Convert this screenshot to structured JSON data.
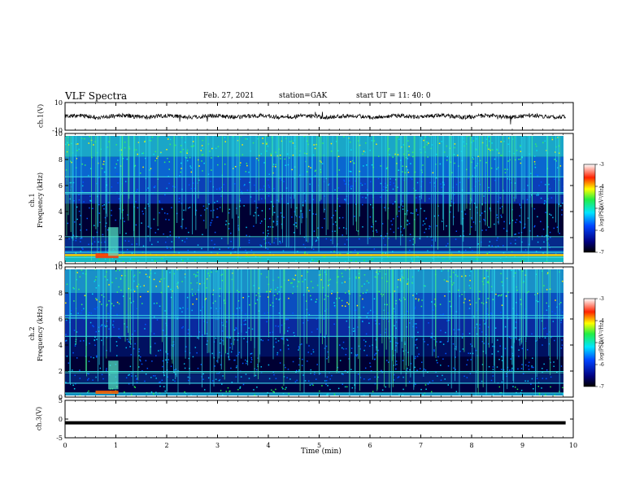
{
  "header": {
    "title": "VLF Spectra",
    "date": "Feb. 27, 2021",
    "station": "station=GAK",
    "start": "start UT =  11: 40: 0"
  },
  "colors": {
    "spectrogram_low": "#000033",
    "spectrogram_mid": "#0044cc",
    "spectrogram_cyan": "#00ddee",
    "spectrogram_green": "#33ee66",
    "spectrogram_yellow": "#ffee00",
    "spectrogram_red": "#dd0000",
    "trace": "#000000"
  },
  "chart_data": [
    {
      "type": "line",
      "panel": "ch1-waveform",
      "ylabel": "ch.1(V)",
      "ylim": [
        -10,
        10
      ],
      "yticks": [
        "10",
        "-10"
      ],
      "description_values": "noise trace centred near 0 V",
      "x_range_min": [
        0,
        10
      ]
    },
    {
      "type": "heatmap",
      "panel": "ch1-spectrogram",
      "ylabel": "ch.1\nFrequency (kHz)",
      "ylabel_line1": "ch.1",
      "ylabel_line2": "Frequency (kHz)",
      "ylim": [
        0,
        10
      ],
      "yticks": [
        "0",
        "2",
        "4",
        "6",
        "8",
        "10"
      ],
      "colorbar": {
        "label": "log(PSD)(V²/Hz)",
        "ticks": [
          "-3",
          "-4",
          "-5",
          "-6",
          "-7"
        ],
        "range": [
          -7,
          -3
        ]
      }
    },
    {
      "type": "heatmap",
      "panel": "ch2-spectrogram",
      "ylabel_line1": "ch.2",
      "ylabel_line2": "Frequency (kHz)",
      "ylim": [
        0,
        10
      ],
      "yticks": [
        "0",
        "2",
        "4",
        "6",
        "8",
        "10"
      ],
      "colorbar": {
        "label": "log(PSD)(V²/Hz)",
        "ticks": [
          "-3",
          "-4",
          "-5",
          "-6",
          "-7"
        ],
        "range": [
          -7,
          -3
        ]
      }
    },
    {
      "type": "line",
      "panel": "ch3-waveform",
      "ylabel": "ch.3(V)",
      "ylim": [
        -5,
        5
      ],
      "yticks": [
        "5",
        "0",
        "-5"
      ],
      "constant_value": -1
    }
  ],
  "xaxis": {
    "label": "Time (min)",
    "ticks": [
      "0",
      "1",
      "2",
      "3",
      "4",
      "5",
      "6",
      "7",
      "8",
      "9",
      "10"
    ],
    "xlim": [
      0,
      10
    ]
  }
}
